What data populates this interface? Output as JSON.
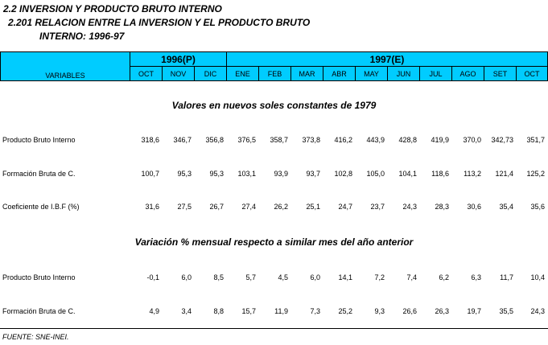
{
  "title": {
    "line1": "2.2 INVERSION Y PRODUCTO BRUTO INTERNO",
    "line2": "2.201  RELACION ENTRE LA INVERSION  Y EL PRODUCTO BRUTO",
    "line3": "INTERNO: 1996-97"
  },
  "header": {
    "variables_label": "VARIABLES",
    "year1": "1996(P)",
    "year2": "1997(E)",
    "months": [
      "OCT",
      "NOV",
      "DIC",
      "ENE",
      "FEB",
      "MAR",
      "ABR",
      "MAY",
      "JUN",
      "JUL",
      "AGO",
      "SET",
      "OCT"
    ]
  },
  "section1": {
    "heading": "Valores en nuevos soles constantes de 1979",
    "rows": [
      {
        "label": "Producto Bruto Interno",
        "values": [
          "318,6",
          "346,7",
          "356,8",
          "376,5",
          "358,7",
          "373,8",
          "416,2",
          "443,9",
          "428,8",
          "419,9",
          "370,0",
          "342,73",
          "351,7"
        ]
      },
      {
        "label": "Formación Bruta de C.",
        "values": [
          "100,7",
          "95,3",
          "95,3",
          "103,1",
          "93,9",
          "93,7",
          "102,8",
          "105,0",
          "104,1",
          "118,6",
          "113,2",
          "121,4",
          "125,2"
        ]
      },
      {
        "label": "Coeficiente de I.B.F (%)",
        "values": [
          "31,6",
          "27,5",
          "26,7",
          "27,4",
          "26,2",
          "25,1",
          "24,7",
          "23,7",
          "24,3",
          "28,3",
          "30,6",
          "35,4",
          "35,6"
        ]
      }
    ]
  },
  "section2": {
    "heading": "Variación % mensual respecto a similar mes del año anterior",
    "rows": [
      {
        "label": "Producto Bruto Interno",
        "values": [
          "-0,1",
          "6,0",
          "8,5",
          "5,7",
          "4,5",
          "6,0",
          "14,1",
          "7,2",
          "7,4",
          "6,2",
          "6,3",
          "11,7",
          "10,4"
        ]
      },
      {
        "label": "Formación Bruta de C.",
        "values": [
          "4,9",
          "3,4",
          "8,8",
          "15,7",
          "11,9",
          "7,3",
          "25,2",
          "9,3",
          "26,6",
          "26,3",
          "19,7",
          "35,5",
          "24,3"
        ]
      }
    ]
  },
  "footer": "FUENTE: SNE-INEI."
}
